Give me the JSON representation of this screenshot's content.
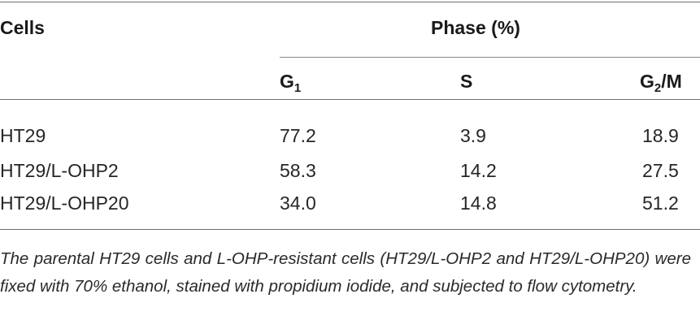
{
  "table": {
    "header": {
      "cells_label": "Cells",
      "phase_label": "Phase (%)",
      "g1_main": "G",
      "g1_sub": "1",
      "s_label": "S",
      "g2m_main": "G",
      "g2m_sub": "2",
      "g2m_suffix": "/M"
    },
    "rows": [
      {
        "name": "HT29",
        "g1": "77.2",
        "s": "3.9",
        "g2m": "18.9"
      },
      {
        "name": "HT29/L-OHP2",
        "g1": "58.3",
        "s": "14.2",
        "g2m": "27.5"
      },
      {
        "name": "HT29/L-OHP20",
        "g1": "34.0",
        "s": "14.8",
        "g2m": "51.2"
      }
    ],
    "footnote": "The parental HT29 cells and L-OHP-resistant cells (HT29/L-OHP2 and HT29/L-OHP20) were fixed with 70% ethanol, stained with propidium iodide, and subjected to flow cytometry."
  }
}
